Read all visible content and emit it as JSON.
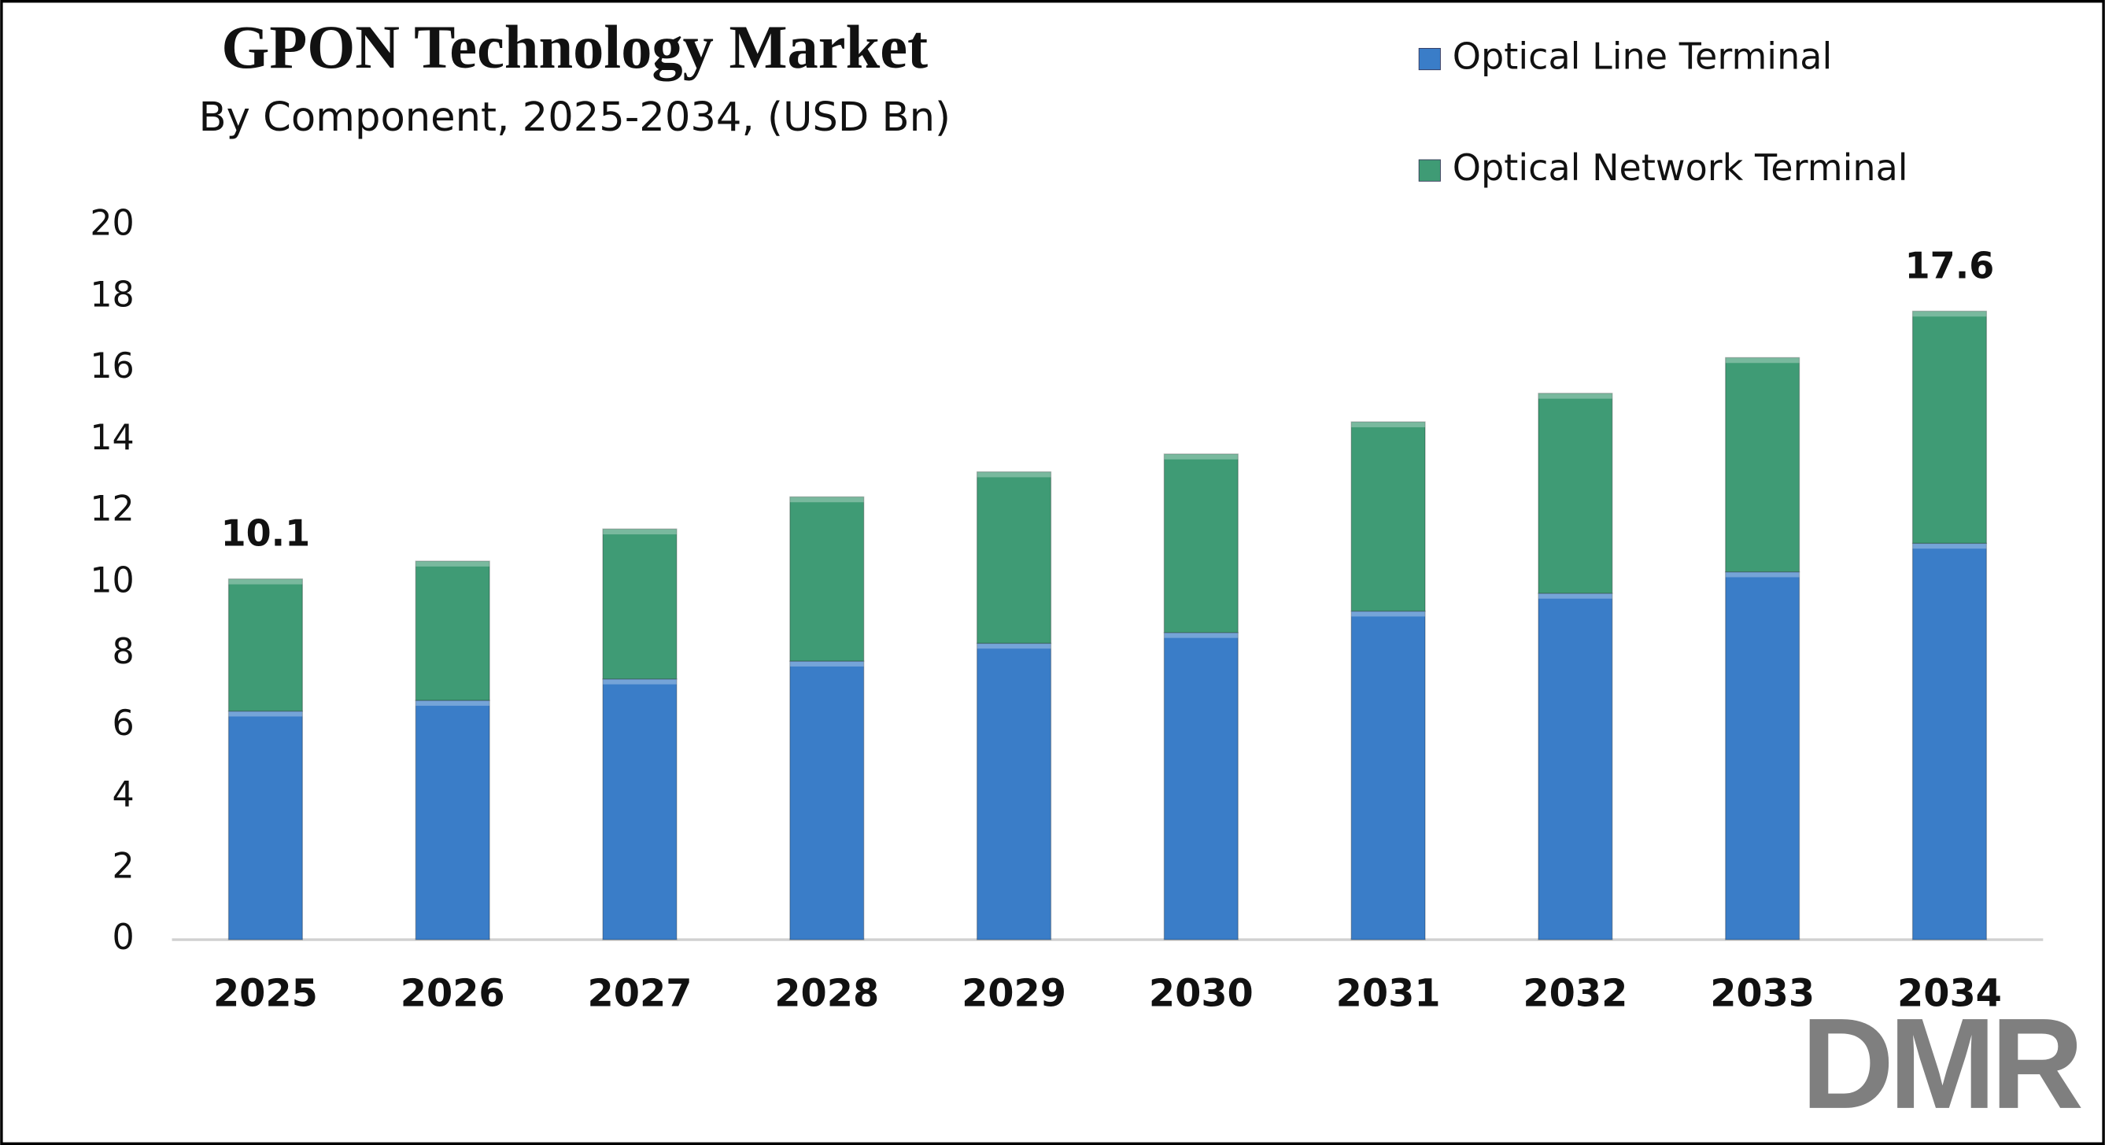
{
  "chart_data": {
    "type": "stacked-bar",
    "title": "GPON Technology Market",
    "subtitle": "By Component, 2025-2034, (USD Bn)",
    "categories": [
      "2025",
      "2026",
      "2027",
      "2028",
      "2029",
      "2030",
      "2031",
      "2032",
      "2033",
      "2034"
    ],
    "series": [
      {
        "name": "Optical Line Terminal",
        "color": "#3a7dc8",
        "values": [
          6.4,
          6.7,
          7.3,
          7.8,
          8.3,
          8.6,
          9.2,
          9.7,
          10.3,
          11.1
        ]
      },
      {
        "name": "Optical Network Terminal",
        "color": "#3f9b75",
        "values": [
          3.7,
          3.9,
          4.2,
          4.6,
          4.8,
          5.0,
          5.3,
          5.6,
          6.0,
          6.5
        ]
      }
    ],
    "totals": [
      10.1,
      null,
      null,
      null,
      null,
      null,
      null,
      null,
      null,
      17.6
    ],
    "ylim": [
      0,
      20
    ],
    "yticks": [
      0,
      2,
      4,
      6,
      8,
      10,
      12,
      14,
      16,
      18,
      20
    ],
    "grid": false,
    "legend": "top-right"
  },
  "logo": "DMR"
}
